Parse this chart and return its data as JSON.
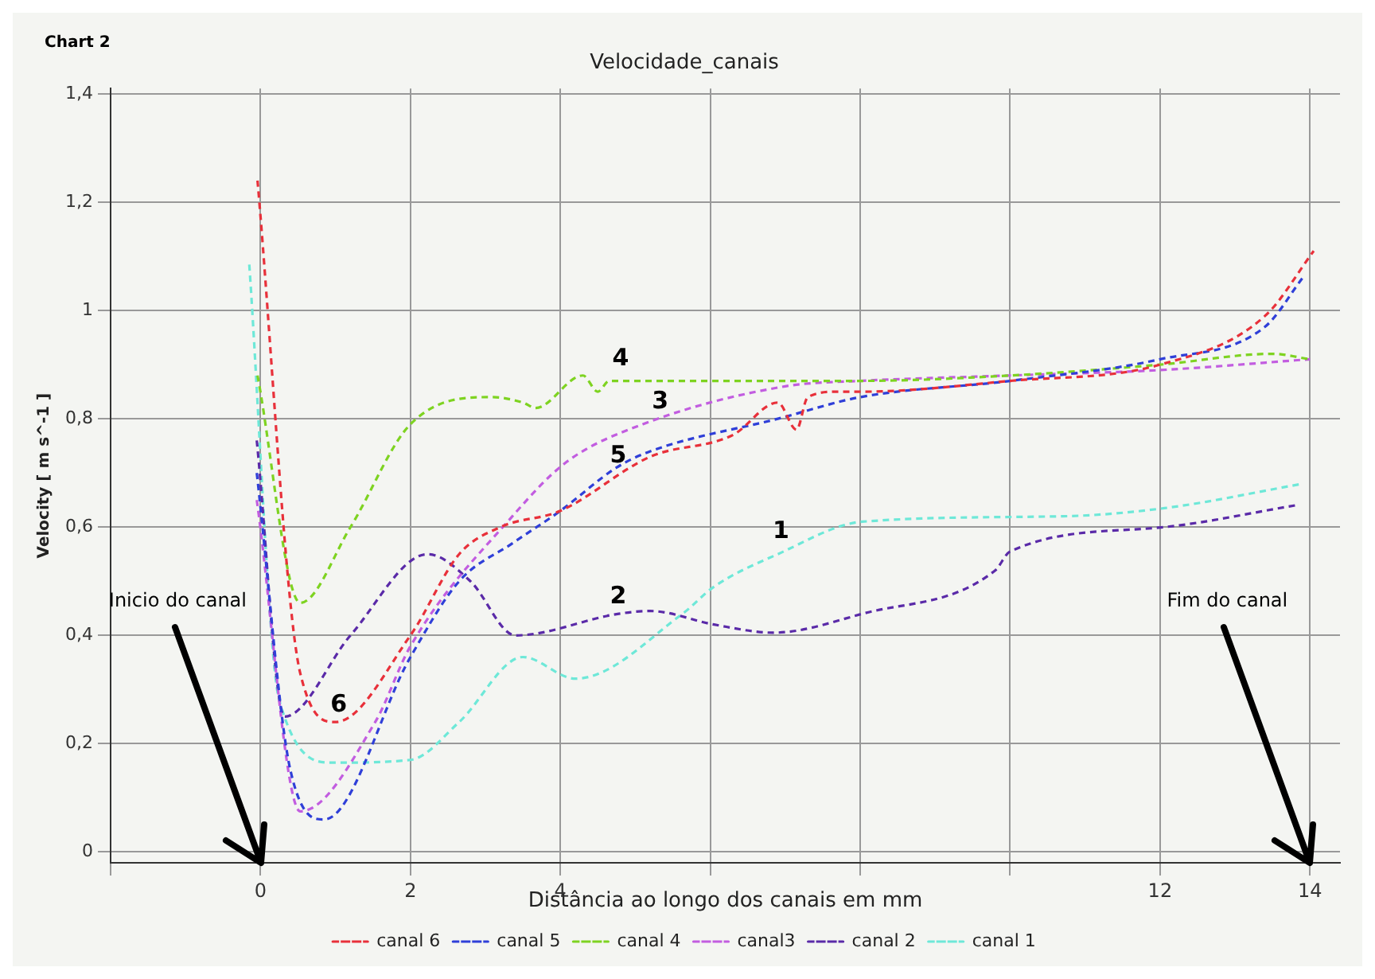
{
  "chart_data": {
    "type": "line",
    "title": "Velocidade_canais",
    "xlabel": "Distância ao longo dos canais em mm",
    "ylabel": "Velocity [ m s^-1 ]",
    "annotations": [
      "Chart 2",
      "Inicio do canal",
      "Fim do canal",
      {
        "text": "1",
        "x": 6.9,
        "y": 0.56
      },
      {
        "text": "2",
        "x": 4.73,
        "y": 0.44
      },
      {
        "text": "3",
        "x": 5.29,
        "y": 0.8
      },
      {
        "text": "4",
        "x": 4.76,
        "y": 0.88
      },
      {
        "text": "5",
        "x": 4.73,
        "y": 0.7
      },
      {
        "text": "6",
        "x": 1.0,
        "y": 0.24
      }
    ],
    "series": [
      {
        "name": "canal 6",
        "color": "#e8303a",
        "x": [
          -0.04,
          0.53,
          1.0,
          2,
          2.65,
          3.2,
          4,
          5.2,
          6.3,
          6.9,
          7.15,
          7.3,
          7.7,
          8,
          10,
          12,
          13.4,
          14.05
        ],
        "values": [
          1.24,
          0.33,
          0.24,
          0.4,
          0.55,
          0.6,
          0.63,
          0.73,
          0.77,
          0.83,
          0.78,
          0.84,
          0.85,
          0.85,
          0.87,
          0.9,
          0.99,
          1.11
        ]
      },
      {
        "name": "canal 5",
        "color": "#2f3fd8",
        "x": [
          -0.05,
          0.4,
          0.85,
          2,
          2.65,
          3.36,
          4,
          4.75,
          5.2,
          6.9,
          8,
          10,
          12,
          13.4,
          13.9
        ],
        "values": [
          0.7,
          0.15,
          0.06,
          0.36,
          0.5,
          0.57,
          0.63,
          0.71,
          0.74,
          0.8,
          0.84,
          0.87,
          0.91,
          0.97,
          1.06
        ]
      },
      {
        "name": "canal 4",
        "color": "#7ed321",
        "x": [
          -0.04,
          0.53,
          1.2,
          2,
          3.08,
          3.5,
          3.67,
          4.3,
          4.5,
          4.65,
          6,
          8,
          10,
          12,
          13.5,
          14
        ],
        "values": [
          0.88,
          0.46,
          0.6,
          0.79,
          0.84,
          0.83,
          0.82,
          0.88,
          0.85,
          0.87,
          0.87,
          0.87,
          0.88,
          0.9,
          0.92,
          0.91
        ]
      },
      {
        "name": "canal3",
        "color": "#c25de0",
        "x": [
          -0.05,
          0.53,
          1.53,
          2,
          3.36,
          4.08,
          5.1,
          7,
          8,
          10,
          12,
          14
        ],
        "values": [
          0.65,
          0.075,
          0.24,
          0.38,
          0.62,
          0.72,
          0.79,
          0.86,
          0.87,
          0.88,
          0.89,
          0.91
        ]
      },
      {
        "name": "canal 2",
        "color": "#5a2aa8",
        "x": [
          -0.05,
          0.32,
          1.2,
          2.23,
          2.8,
          3.4,
          4.78,
          5.2,
          6.05,
          6.84,
          8.03,
          9.8,
          10.0,
          12.06,
          13.8
        ],
        "values": [
          0.76,
          0.25,
          0.4,
          0.55,
          0.5,
          0.4,
          0.44,
          0.445,
          0.42,
          0.405,
          0.44,
          0.52,
          0.555,
          0.6,
          0.64
        ]
      },
      {
        "name": "canal 1",
        "color": "#6ee8d8",
        "x": [
          -0.15,
          0.25,
          0.96,
          2,
          2.65,
          3.5,
          4.2,
          5.63,
          6.05,
          6.9,
          8.03,
          10.7,
          12.06,
          13.9
        ],
        "values": [
          1.085,
          0.28,
          0.165,
          0.17,
          0.24,
          0.36,
          0.32,
          0.44,
          0.49,
          0.55,
          0.61,
          0.62,
          0.635,
          0.68
        ]
      }
    ],
    "xlim": [
      -2,
      14.4
    ],
    "ylim": [
      -0.02,
      1.41
    ],
    "xticks": [
      {
        "value": -2,
        "label": null
      },
      0,
      2,
      4,
      {
        "value": 6,
        "label": null
      },
      {
        "value": 8,
        "label": null
      },
      {
        "value": 10,
        "label": null
      },
      12,
      14
    ],
    "yticks": [
      0,
      {
        "value": 0.2,
        "label": "0,2"
      },
      {
        "value": 0.4,
        "label": "0,4"
      },
      {
        "value": 0.6,
        "label": "0,6"
      },
      {
        "value": 0.8,
        "label": "0,8"
      },
      1,
      {
        "value": 1.2,
        "label": "1,2"
      },
      {
        "value": 1.4,
        "label": "1,4"
      }
    ],
    "grid": true,
    "legend": "bottom",
    "marker": "none",
    "line_style": "dashed"
  }
}
